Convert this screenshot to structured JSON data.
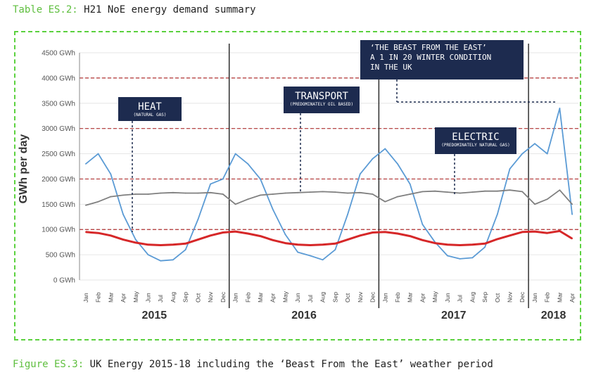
{
  "header": {
    "table_label": "Table ES.2:",
    "table_title": "H21 NoE energy demand summary"
  },
  "caption": {
    "figure_label": "Figure ES.3:",
    "figure_text": "UK Energy 2015-18 including the ‘Beast From the East’ weather period"
  },
  "colors": {
    "heat": "#5b9bd5",
    "transport": "#7f7f7f",
    "electric": "#d62728",
    "accent": "#5fbf3f",
    "callout": "#1d2b4f"
  },
  "chart_data": {
    "type": "line",
    "title": "",
    "ylabel": "GWh per day",
    "xlabel": "",
    "ylim": [
      0,
      4500
    ],
    "yticks": [
      0,
      500,
      1000,
      1500,
      2000,
      2500,
      3000,
      3500,
      4000,
      4500
    ],
    "ytick_labels": [
      "0 GWh",
      "500 GWh",
      "1000 GWh",
      "1500 GWh",
      "2000 GWh",
      "2500 GWh",
      "3000 GWh",
      "3500 GWh",
      "4000 GWh",
      "4500 GWh"
    ],
    "reference_lines": [
      1000,
      2000,
      3000,
      4000
    ],
    "grid": true,
    "year_labels": [
      "2015",
      "2016",
      "2017",
      "2018"
    ],
    "month_labels": [
      "Jan",
      "Feb",
      "Mar",
      "Apr",
      "May",
      "Jun",
      "Jul",
      "Aug",
      "Sep",
      "Oct",
      "Nov",
      "Dec"
    ],
    "x_range": [
      "2015-01",
      "2018-04"
    ],
    "series": [
      {
        "name": "HEAT",
        "sub": "(NATURAL GAS)",
        "x": [
          "2015-01",
          "2015-02",
          "2015-03",
          "2015-04",
          "2015-05",
          "2015-06",
          "2015-07",
          "2015-08",
          "2015-09",
          "2015-10",
          "2015-11",
          "2015-12",
          "2016-01",
          "2016-02",
          "2016-03",
          "2016-04",
          "2016-05",
          "2016-06",
          "2016-07",
          "2016-08",
          "2016-09",
          "2016-10",
          "2016-11",
          "2016-12",
          "2017-01",
          "2017-02",
          "2017-03",
          "2017-04",
          "2017-05",
          "2017-06",
          "2017-07",
          "2017-08",
          "2017-09",
          "2017-10",
          "2017-11",
          "2017-12",
          "2018-01",
          "2018-02",
          "2018-03",
          "2018-04"
        ],
        "values": [
          2300,
          2500,
          2100,
          1300,
          800,
          500,
          380,
          400,
          600,
          1200,
          1900,
          2000,
          2500,
          2300,
          2000,
          1400,
          900,
          550,
          480,
          400,
          600,
          1300,
          2100,
          2400,
          2600,
          2300,
          1900,
          1100,
          750,
          480,
          420,
          440,
          650,
          1300,
          2200,
          2500,
          2700,
          2500,
          3400,
          1300
        ]
      },
      {
        "name": "TRANSPORT",
        "sub": "(PREDOMINATELY OIL BASED)",
        "x": [
          "2015-01",
          "2015-02",
          "2015-03",
          "2015-04",
          "2015-05",
          "2015-06",
          "2015-07",
          "2015-08",
          "2015-09",
          "2015-10",
          "2015-11",
          "2015-12",
          "2016-01",
          "2016-02",
          "2016-03",
          "2016-04",
          "2016-05",
          "2016-06",
          "2016-07",
          "2016-08",
          "2016-09",
          "2016-10",
          "2016-11",
          "2016-12",
          "2017-01",
          "2017-02",
          "2017-03",
          "2017-04",
          "2017-05",
          "2017-06",
          "2017-07",
          "2017-08",
          "2017-09",
          "2017-10",
          "2017-11",
          "2017-12",
          "2018-01",
          "2018-02",
          "2018-03",
          "2018-04"
        ],
        "values": [
          1480,
          1550,
          1650,
          1680,
          1700,
          1700,
          1720,
          1730,
          1720,
          1720,
          1730,
          1700,
          1500,
          1600,
          1680,
          1700,
          1720,
          1730,
          1740,
          1750,
          1740,
          1720,
          1730,
          1700,
          1550,
          1650,
          1700,
          1750,
          1760,
          1740,
          1720,
          1740,
          1760,
          1760,
          1780,
          1750,
          1500,
          1600,
          1780,
          1500
        ]
      },
      {
        "name": "ELECTRIC",
        "sub": "(PREDOMINATELY NATURAL GAS)",
        "x": [
          "2015-01",
          "2015-02",
          "2015-03",
          "2015-04",
          "2015-05",
          "2015-06",
          "2015-07",
          "2015-08",
          "2015-09",
          "2015-10",
          "2015-11",
          "2015-12",
          "2016-01",
          "2016-02",
          "2016-03",
          "2016-04",
          "2016-05",
          "2016-06",
          "2016-07",
          "2016-08",
          "2016-09",
          "2016-10",
          "2016-11",
          "2016-12",
          "2017-01",
          "2017-02",
          "2017-03",
          "2017-04",
          "2017-05",
          "2017-06",
          "2017-07",
          "2017-08",
          "2017-09",
          "2017-10",
          "2017-11",
          "2017-12",
          "2018-01",
          "2018-02",
          "2018-03",
          "2018-04"
        ],
        "values": [
          950,
          930,
          880,
          800,
          740,
          700,
          690,
          700,
          720,
          800,
          880,
          940,
          960,
          920,
          870,
          790,
          730,
          700,
          690,
          700,
          720,
          800,
          880,
          940,
          950,
          920,
          870,
          790,
          730,
          700,
          690,
          700,
          720,
          810,
          880,
          950,
          960,
          930,
          970,
          820
        ]
      }
    ],
    "annotations": [
      {
        "label": "HEAT",
        "sub": "(NATURAL GAS)"
      },
      {
        "label": "TRANSPORT",
        "sub": "(PREDOMINATELY OIL BASED)"
      },
      {
        "label": "ELECTRIC",
        "sub": "(PREDOMINATELY NATURAL GAS)"
      },
      {
        "lines": [
          "‘THE BEAST FROM THE EAST’",
          "A 1 IN 20 WINTER CONDITION",
          "IN THE UK"
        ]
      }
    ]
  }
}
